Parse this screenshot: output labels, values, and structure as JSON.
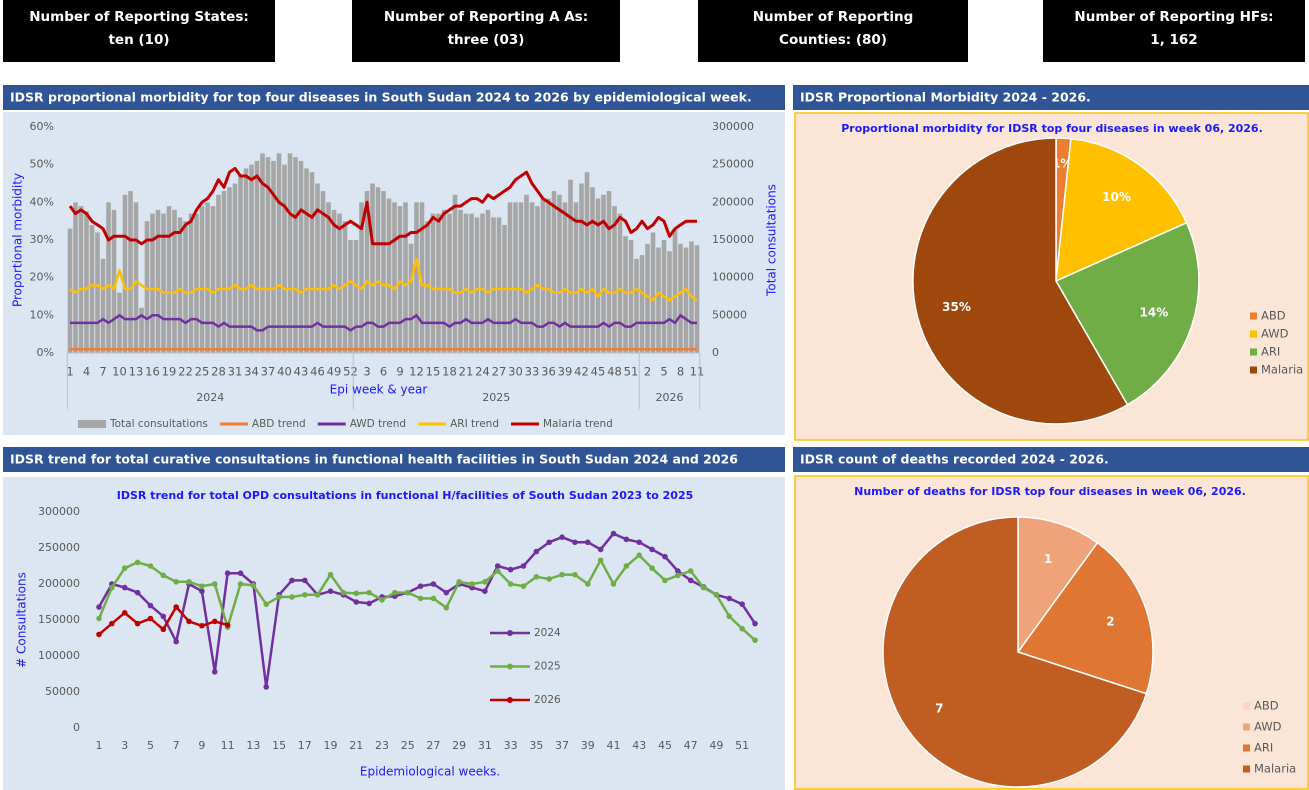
{
  "kpis": [
    {
      "label": "Number of Reporting States:",
      "value": "ten (10)"
    },
    {
      "label": "Number of Reporting A As:",
      "value": "three (03)"
    },
    {
      "label": "Number of Reporting",
      "value": "Counties: (80)"
    },
    {
      "label": "Number of Reporting HFs:",
      "value": "1, 162"
    }
  ],
  "chart_data": [
    {
      "type": "combo",
      "panel_title": "IDSR proportional morbidity for top four diseases in South Sudan 2024 to 2026 by epidemiological week.",
      "xlabel": "Epi week & year",
      "ylabel": "Proportional morbidity",
      "y2label": "Total consultations",
      "groups": [
        {
          "label": "2024",
          "categories": [
            "1",
            null,
            null,
            "4",
            null,
            null,
            "7",
            null,
            null,
            "10",
            null,
            null,
            "13",
            null,
            null,
            "16",
            null,
            null,
            "19",
            null,
            null,
            "22",
            null,
            null,
            "25",
            null,
            null,
            "28",
            null,
            null,
            "31",
            null,
            null,
            "34",
            null,
            null,
            "37",
            null,
            null,
            "40",
            null,
            null,
            "43",
            null,
            null,
            "46",
            null,
            null,
            "49",
            null,
            null,
            "52"
          ]
        },
        {
          "label": "2025",
          "categories": [
            null,
            null,
            "3",
            null,
            null,
            "6",
            null,
            null,
            "9",
            null,
            null,
            "12",
            null,
            null,
            "15",
            null,
            null,
            "18",
            null,
            null,
            "21",
            null,
            null,
            "24",
            null,
            null,
            "27",
            null,
            null,
            "30",
            null,
            null,
            "33",
            null,
            null,
            "36",
            null,
            null,
            "39",
            null,
            null,
            "42",
            null,
            null,
            "45",
            null,
            null,
            "48",
            null,
            null,
            "51",
            null
          ]
        },
        {
          "label": "2026",
          "categories": [
            null,
            "2",
            null,
            null,
            "5",
            null,
            null,
            "8",
            null,
            null,
            "11"
          ]
        }
      ],
      "ylim": [
        0,
        60
      ],
      "yticks": [
        {
          "value": 0,
          "label": "0%"
        },
        {
          "value": 10,
          "label": "10%"
        },
        {
          "value": 20,
          "label": "20%"
        },
        {
          "value": 30,
          "label": "30%"
        },
        {
          "value": 40,
          "label": "40%"
        },
        {
          "value": 50,
          "label": "50%"
        },
        {
          "value": 60,
          "label": "60%"
        }
      ],
      "y2lim": [
        0,
        300000
      ],
      "y2ticks": [
        0,
        50000,
        100000,
        150000,
        200000,
        250000,
        300000
      ],
      "series": [
        {
          "name": "Total consultations",
          "type": "bar",
          "axis": "y2",
          "color": "#a6a6a6",
          "values": [
            165000,
            200000,
            195000,
            188000,
            170000,
            160000,
            125000,
            200000,
            190000,
            80000,
            210000,
            215000,
            200000,
            60000,
            175000,
            185000,
            190000,
            185000,
            195000,
            190000,
            180000,
            175000,
            185000,
            185000,
            195000,
            200000,
            195000,
            210000,
            215000,
            220000,
            225000,
            235000,
            245000,
            250000,
            255000,
            265000,
            260000,
            255000,
            265000,
            250000,
            265000,
            260000,
            255000,
            245000,
            240000,
            225000,
            215000,
            200000,
            190000,
            185000,
            175000,
            150000,
            150000,
            200000,
            215000,
            225000,
            220000,
            215000,
            205000,
            200000,
            195000,
            200000,
            145000,
            200000,
            200000,
            175000,
            185000,
            185000,
            190000,
            185000,
            210000,
            190000,
            185000,
            185000,
            180000,
            185000,
            190000,
            180000,
            180000,
            170000,
            200000,
            200000,
            200000,
            210000,
            200000,
            195000,
            205000,
            205000,
            215000,
            210000,
            200000,
            230000,
            200000,
            225000,
            240000,
            220000,
            205000,
            210000,
            215000,
            195000,
            185000,
            155000,
            150000,
            125000,
            130000,
            145000,
            160000,
            140000,
            150000,
            135000,
            165000,
            145000,
            140000,
            148000,
            143000
          ]
        },
        {
          "name": "ABD trend",
          "type": "line",
          "color": "#ed7d31",
          "values": [
            1,
            1,
            1,
            1,
            1,
            1,
            1,
            1,
            1,
            1,
            1,
            1,
            1,
            1,
            1,
            1,
            1,
            1,
            1,
            1,
            1,
            1,
            1,
            1,
            1,
            1,
            1,
            1,
            1,
            1,
            1,
            1,
            1,
            1,
            1,
            1,
            1,
            1,
            1,
            1,
            1,
            1,
            1,
            1,
            1,
            1,
            1,
            1,
            1,
            1,
            1,
            1,
            1,
            1,
            1,
            1,
            1,
            1,
            1,
            1,
            1,
            1,
            1,
            1,
            1,
            1,
            1,
            1,
            1,
            1,
            1,
            1,
            1,
            1,
            1,
            1,
            1,
            1,
            1,
            1,
            1,
            1,
            1,
            1,
            1,
            1,
            1,
            1,
            1,
            1,
            1,
            1,
            1,
            1,
            1,
            1,
            1,
            1,
            1,
            1,
            1,
            1,
            1,
            1,
            1,
            1,
            1,
            1,
            1,
            1,
            1,
            1,
            1,
            1,
            1
          ]
        },
        {
          "name": "AWD trend",
          "type": "line",
          "color": "#7030a0",
          "values": [
            8,
            8,
            8,
            8,
            8,
            8,
            9,
            8,
            9,
            10,
            9,
            9,
            9,
            10,
            9,
            10,
            10,
            9,
            9,
            9,
            9,
            8,
            9,
            9,
            8,
            8,
            8,
            7,
            8,
            7,
            7,
            7,
            7,
            7,
            6,
            6,
            7,
            7,
            7,
            7,
            7,
            7,
            7,
            7,
            7,
            8,
            7,
            7,
            7,
            7,
            7,
            6,
            7,
            7,
            8,
            8,
            7,
            7,
            8,
            8,
            8,
            9,
            9,
            10,
            8,
            8,
            8,
            8,
            8,
            7,
            8,
            8,
            9,
            8,
            8,
            8,
            9,
            8,
            8,
            8,
            8,
            9,
            8,
            8,
            8,
            7,
            7,
            8,
            8,
            7,
            8,
            7,
            7,
            7,
            7,
            7,
            7,
            8,
            7,
            8,
            8,
            7,
            7,
            8,
            8,
            8,
            8,
            8,
            8,
            9,
            8,
            10,
            9,
            8,
            8
          ]
        },
        {
          "name": "ARI trend",
          "type": "line",
          "color": "#ffc000",
          "values": [
            17,
            16,
            17,
            17,
            18,
            18,
            17,
            18,
            17,
            22,
            17,
            17,
            19,
            18,
            17,
            17,
            17,
            16,
            16,
            16,
            17,
            16,
            16,
            17,
            17,
            17,
            16,
            17,
            17,
            17,
            18,
            17,
            17,
            18,
            17,
            17,
            17,
            17,
            18,
            17,
            17,
            17,
            16,
            17,
            17,
            17,
            17,
            17,
            18,
            17,
            18,
            19,
            18,
            17,
            19,
            18,
            19,
            18,
            18,
            17,
            19,
            18,
            19,
            25,
            18,
            18,
            17,
            17,
            17,
            17,
            16,
            16,
            17,
            16,
            17,
            17,
            16,
            17,
            17,
            17,
            17,
            17,
            17,
            16,
            17,
            18,
            17,
            17,
            16,
            16,
            17,
            16,
            16,
            17,
            16,
            17,
            15,
            17,
            16,
            16,
            17,
            16,
            16,
            17,
            16,
            15,
            14,
            16,
            15,
            14,
            15,
            16,
            17,
            15,
            14
          ]
        },
        {
          "name": "Malaria trend",
          "type": "line",
          "color": "#c00000",
          "values": [
            39,
            37,
            38,
            37,
            35,
            34,
            33,
            30,
            31,
            31,
            31,
            30,
            30,
            29,
            30,
            30,
            31,
            31,
            31,
            32,
            32,
            34,
            35,
            38,
            40,
            41,
            43,
            46,
            44,
            48,
            49,
            47,
            47,
            46,
            47,
            45,
            44,
            42,
            40,
            39,
            37,
            36,
            38,
            37,
            36,
            38,
            37,
            36,
            34,
            33,
            34,
            35,
            34,
            33,
            40,
            29,
            29,
            29,
            29,
            30,
            31,
            31,
            32,
            32,
            33,
            34,
            36,
            35,
            37,
            38,
            39,
            39,
            40,
            41,
            41,
            40,
            42,
            41,
            42,
            43,
            44,
            46,
            47,
            48,
            45,
            43,
            41,
            40,
            39,
            38,
            37,
            36,
            35,
            35,
            34,
            35,
            34,
            35,
            33,
            34,
            36,
            35,
            32,
            33,
            35,
            33,
            34,
            36,
            35,
            31,
            33,
            34,
            35,
            35,
            35
          ]
        }
      ]
    },
    {
      "type": "pie",
      "panel_title": "IDSR Proportional Morbidity 2024 - 2026.",
      "title": "Proportional morbidity for IDSR top four diseases in week 06, 2026.",
      "categories": [
        "ABD",
        "AWD",
        "ARI",
        "Malaria"
      ],
      "values": [
        1,
        10,
        14,
        35
      ],
      "value_labels": [
        "1%",
        "10%",
        "14%",
        "35%"
      ],
      "colors": [
        "#ed7d31",
        "#ffc000",
        "#70ad47",
        "#9e480e"
      ]
    },
    {
      "type": "line",
      "panel_title": "IDSR trend for total curative consultations in functional health facilities in South Sudan 2024 and 2026",
      "title": "IDSR trend for total OPD consultations in functional H/facilities of South Sudan 2023 to 2025",
      "xlabel": "Epidemiological weeks.",
      "ylabel": "# Consultations",
      "categories": [
        "1",
        null,
        "3",
        null,
        "5",
        null,
        "7",
        null,
        "9",
        null,
        "11",
        null,
        "13",
        null,
        "15",
        null,
        "17",
        null,
        "19",
        null,
        "21",
        null,
        "23",
        null,
        "25",
        null,
        "27",
        null,
        "29",
        null,
        "31",
        null,
        "33",
        null,
        "35",
        null,
        "37",
        null,
        "39",
        null,
        "41",
        null,
        "43",
        null,
        "45",
        null,
        "47",
        null,
        "49",
        null,
        "51",
        null
      ],
      "ylim": [
        0,
        300000
      ],
      "yticks": [
        0,
        50000,
        100000,
        150000,
        200000,
        250000,
        300000
      ],
      "series": [
        {
          "name": "2024",
          "color": "#7030a0",
          "values": [
            168000,
            200000,
            195000,
            188000,
            170000,
            155000,
            120000,
            200000,
            190000,
            78000,
            215000,
            215000,
            200000,
            57000,
            185000,
            205000,
            205000,
            185000,
            190000,
            185000,
            175000,
            173000,
            182000,
            183000,
            188000,
            197000,
            200000,
            188000,
            200000,
            195000,
            190000,
            225000,
            220000,
            225000,
            245000,
            258000,
            265000,
            258000,
            258000,
            248000,
            270000,
            262000,
            258000,
            248000,
            238000,
            218000,
            205000,
            196000,
            185000,
            180000,
            172000,
            145000
          ]
        },
        {
          "name": "2025",
          "color": "#70ad47",
          "values": [
            152000,
            195000,
            222000,
            230000,
            225000,
            212000,
            203000,
            203000,
            197000,
            200000,
            140000,
            200000,
            198000,
            172000,
            182000,
            182000,
            185000,
            185000,
            213000,
            188000,
            187000,
            188000,
            178000,
            188000,
            188000,
            180000,
            180000,
            167000,
            203000,
            200000,
            203000,
            218000,
            200000,
            197000,
            210000,
            207000,
            213000,
            213000,
            200000,
            233000,
            200000,
            225000,
            240000,
            222000,
            205000,
            212000,
            218000,
            195000,
            185000,
            155000,
            138000,
            122000
          ]
        },
        {
          "name": "2026",
          "color": "#c00000",
          "values": [
            130000,
            145000,
            160000,
            145000,
            152000,
            137000,
            168000,
            148000,
            142000,
            148000,
            143000,
            null,
            null,
            null,
            null,
            null,
            null,
            null,
            null,
            null,
            null,
            null,
            null,
            null,
            null,
            null,
            null,
            null,
            null,
            null,
            null,
            null,
            null,
            null,
            null,
            null,
            null,
            null,
            null,
            null,
            null,
            null,
            null,
            null,
            null,
            null,
            null,
            null,
            null,
            null,
            null,
            null
          ]
        }
      ]
    },
    {
      "type": "pie",
      "panel_title": "IDSR count of deaths recorded 2024 - 2026.",
      "title": "Number of deaths for IDSR top four diseases in week 06, 2026.",
      "categories": [
        "ABD",
        "AWD",
        "ARI",
        "Malaria"
      ],
      "values": [
        0,
        1,
        2,
        7
      ],
      "colors": [
        "#fbd5bd",
        "#f0a37a",
        "#df7633",
        "#bf5d22"
      ]
    }
  ]
}
